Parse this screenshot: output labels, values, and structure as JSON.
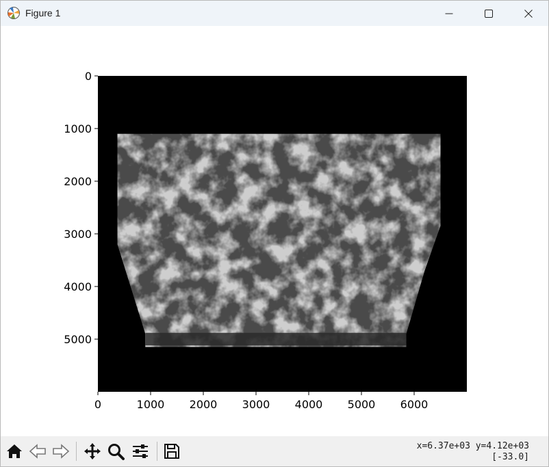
{
  "window": {
    "title": "Figure 1",
    "icons": {
      "app": "matplotlib-icon",
      "minimize": "minimize-icon",
      "maximize": "maximize-icon",
      "close": "close-icon"
    }
  },
  "toolbar": {
    "buttons": [
      {
        "name": "home-button",
        "icon": "home-icon"
      },
      {
        "name": "back-button",
        "icon": "back-arrow-icon"
      },
      {
        "name": "forward-button",
        "icon": "forward-arrow-icon"
      },
      {
        "name": "pan-button",
        "icon": "pan-icon"
      },
      {
        "name": "zoom-button",
        "icon": "zoom-icon"
      },
      {
        "name": "configure-subplots-button",
        "icon": "sliders-icon"
      },
      {
        "name": "save-button",
        "icon": "save-icon"
      }
    ],
    "coord_line1": "x=6.37e+03 y=4.12e+03",
    "coord_line2": "[-33.0]"
  },
  "chart_data": {
    "type": "heatmap",
    "title": "",
    "xlabel": "",
    "ylabel": "",
    "xlim": [
      0,
      7000
    ],
    "ylim": [
      6000,
      0
    ],
    "y_axis_inverted": true,
    "xticks": [
      0,
      1000,
      2000,
      3000,
      4000,
      5000,
      6000
    ],
    "xtick_labels": [
      "0",
      "1000",
      "2000",
      "3000",
      "4000",
      "5000",
      "6000"
    ],
    "yticks": [
      0,
      1000,
      2000,
      3000,
      4000,
      5000
    ],
    "ytick_labels": [
      "0",
      "1000",
      "2000",
      "3000",
      "4000",
      "5000"
    ],
    "colormap": "gray",
    "background_color": "#000000",
    "valid_region_color": "#4a4a4a",
    "cloud_color": "#9a9a9a",
    "valid_region_outline": [
      [
        370,
        1100
      ],
      [
        6500,
        1100
      ],
      [
        6500,
        2850
      ],
      [
        6200,
        3700
      ],
      [
        5850,
        4900
      ],
      [
        5850,
        5150
      ],
      [
        900,
        5150
      ],
      [
        900,
        4900
      ],
      [
        370,
        3200
      ]
    ],
    "grid": false,
    "legend": "none"
  }
}
